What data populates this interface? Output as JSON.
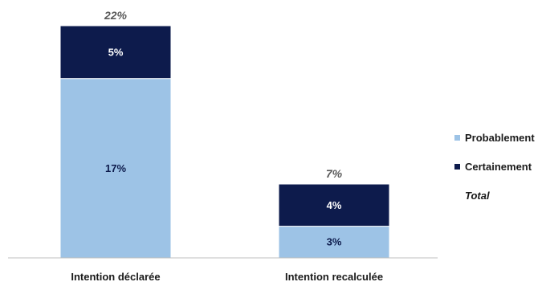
{
  "chart_data": {
    "type": "bar",
    "stacked": true,
    "categories": [
      "Intention déclarée",
      "Intention recalculée"
    ],
    "series": [
      {
        "name": "Probablement",
        "values": [
          17,
          3
        ],
        "labels": [
          "17%",
          "3%"
        ],
        "color": "#9dc3e6"
      },
      {
        "name": "Certainement",
        "values": [
          5,
          4
        ],
        "labels": [
          "5%",
          "4%"
        ],
        "color": "#0d1b4c"
      }
    ],
    "totals": [
      22,
      7
    ],
    "total_labels": [
      "22%",
      "7%"
    ],
    "total_name": "Total",
    "ylim": [
      0,
      23
    ],
    "grid": false,
    "legend_position": "right"
  }
}
